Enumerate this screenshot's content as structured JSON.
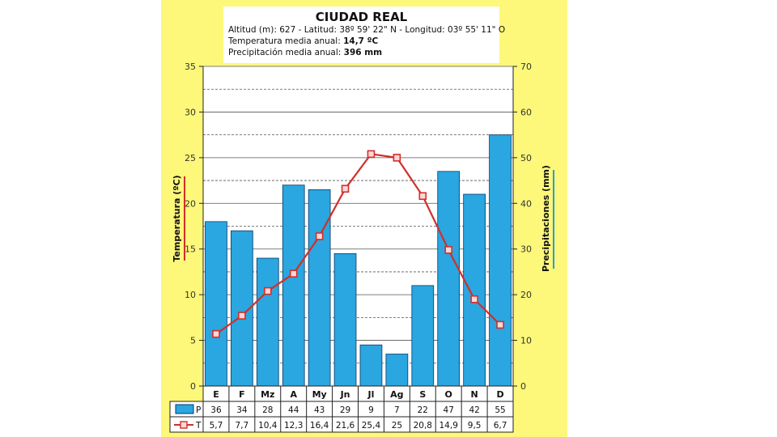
{
  "header": {
    "title": "CIUDAD REAL",
    "location": "Altitud (m): 627 - Latitud: 38º 59' 22\" N - Longitud: 03º 55' 11\" O",
    "temp_label": "Temperatura media anual:",
    "temp_value": "14,7 ºC",
    "precip_label": "Precipitación media anual:",
    "precip_value": "396 mm"
  },
  "chart_data": {
    "type": "bar+line",
    "categories": [
      "E",
      "F",
      "Mz",
      "A",
      "My",
      "Jn",
      "Jl",
      "Ag",
      "S",
      "O",
      "N",
      "D"
    ],
    "series": [
      {
        "name": "P",
        "type": "bar",
        "axis": "right",
        "color": "#2aa6e0",
        "values": [
          36,
          34,
          28,
          44,
          43,
          29,
          9,
          7,
          22,
          47,
          42,
          55
        ],
        "labels": [
          "36",
          "34",
          "28",
          "44",
          "43",
          "29",
          "9",
          "7",
          "22",
          "47",
          "42",
          "55"
        ]
      },
      {
        "name": "T",
        "type": "line",
        "axis": "left",
        "color": "#d0302a",
        "values": [
          5.7,
          7.7,
          10.4,
          12.3,
          16.4,
          21.6,
          25.4,
          25,
          20.8,
          14.9,
          9.5,
          6.7
        ],
        "labels": [
          "5,7",
          "7,7",
          "10,4",
          "12,3",
          "16,4",
          "21,6",
          "25,4",
          "25",
          "20,8",
          "14,9",
          "9,5",
          "6,7"
        ]
      }
    ],
    "ylabel_left": "Temperatura (ºC)",
    "ylabel_right": "Precipitaciones (mm)",
    "ylim_left": [
      0,
      35
    ],
    "ylim_right": [
      0,
      70
    ],
    "yticks_left": [
      "0",
      "5",
      "10",
      "15",
      "20",
      "25",
      "30",
      "35"
    ],
    "yticks_right": [
      "0",
      "10",
      "20",
      "30",
      "40",
      "50",
      "60",
      "70"
    ],
    "grid": true,
    "table_below": true
  }
}
